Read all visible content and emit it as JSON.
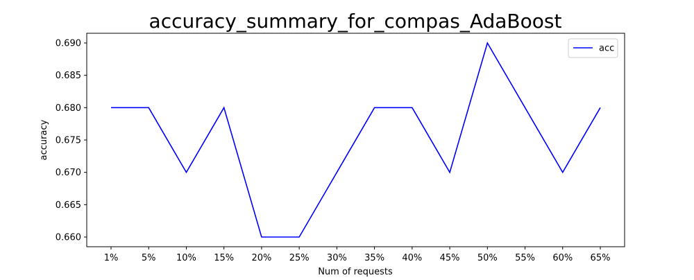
{
  "chart_data": {
    "type": "line",
    "title": "accuracy_summary_for_compas_AdaBoost",
    "xlabel": "Num of requests",
    "ylabel": "accuracy",
    "categories": [
      "1%",
      "5%",
      "10%",
      "15%",
      "20%",
      "25%",
      "30%",
      "35%",
      "40%",
      "45%",
      "50%",
      "55%",
      "60%",
      "65%"
    ],
    "series": [
      {
        "name": "acc",
        "color": "#0000ff",
        "values": [
          0.68,
          0.68,
          0.67,
          0.68,
          0.66,
          0.66,
          0.67,
          0.68,
          0.68,
          0.67,
          0.69,
          0.68,
          0.67,
          0.68
        ]
      }
    ],
    "ylim": [
      0.6585,
      0.6915
    ],
    "yticks": [
      "0.660",
      "0.665",
      "0.670",
      "0.675",
      "0.680",
      "0.685",
      "0.690"
    ],
    "grid": false,
    "legend_position": "top-right"
  }
}
